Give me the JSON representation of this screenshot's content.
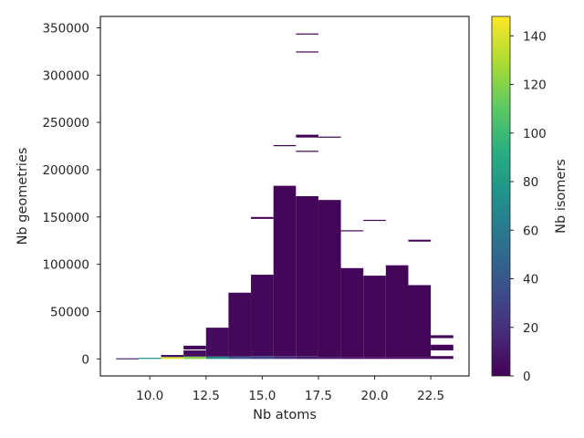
{
  "chart_data": {
    "type": "heatmap",
    "title": "",
    "xlabel": "Nb atoms",
    "ylabel": "Nb geometries",
    "colorbar_label": "Nb isomers",
    "colormap": "viridis",
    "xlim": [
      7.8,
      24.2
    ],
    "ylim": [
      -18000,
      362000
    ],
    "xticks": [
      10.0,
      12.5,
      15.0,
      17.5,
      20.0,
      22.5
    ],
    "xtick_labels": [
      "10.0",
      "12.5",
      "15.0",
      "17.5",
      "20.0",
      "22.5"
    ],
    "yticks": [
      0,
      50000,
      100000,
      150000,
      200000,
      250000,
      300000,
      350000
    ],
    "ytick_labels": [
      "0",
      "50000",
      "100000",
      "150000",
      "200000",
      "250000",
      "300000",
      "350000"
    ],
    "colorbar_range": [
      0,
      148
    ],
    "colorbar_ticks": [
      0,
      20,
      40,
      60,
      80,
      100,
      120,
      140
    ],
    "colorbar_tick_labels": [
      "0",
      "20",
      "40",
      "60",
      "80",
      "100",
      "120",
      "140"
    ],
    "grid": false,
    "columns": [
      {
        "x": 9,
        "cells": [
          {
            "y0": 0,
            "y1": 700,
            "v": 15
          }
        ]
      },
      {
        "x": 10,
        "cells": [
          {
            "y0": 0,
            "y1": 1200,
            "v": 75
          }
        ]
      },
      {
        "x": 11,
        "cells": [
          {
            "y0": 0,
            "y1": 2000,
            "v": 140
          },
          {
            "y0": 2000,
            "y1": 4200,
            "v": 8
          }
        ]
      },
      {
        "x": 12,
        "cells": [
          {
            "y0": 0,
            "y1": 2500,
            "v": 120
          },
          {
            "y0": 2500,
            "y1": 9000,
            "v": 5
          },
          {
            "y0": 10000,
            "y1": 14000,
            "v": 3
          }
        ]
      },
      {
        "x": 13,
        "cells": [
          {
            "y0": 0,
            "y1": 2500,
            "v": 70
          },
          {
            "y0": 2500,
            "y1": 33000,
            "v": 4
          }
        ]
      },
      {
        "x": 14,
        "cells": [
          {
            "y0": 0,
            "y1": 2500,
            "v": 40
          },
          {
            "y0": 2500,
            "y1": 70000,
            "v": 3
          }
        ]
      },
      {
        "x": 15,
        "cells": [
          {
            "y0": 0,
            "y1": 3000,
            "v": 30
          },
          {
            "y0": 3000,
            "y1": 89000,
            "v": 3
          },
          {
            "y0": 148000,
            "y1": 150000,
            "v": 1
          }
        ]
      },
      {
        "x": 16,
        "cells": [
          {
            "y0": 0,
            "y1": 3000,
            "v": 20
          },
          {
            "y0": 3000,
            "y1": 183000,
            "v": 2
          },
          {
            "y0": 225000,
            "y1": 226000,
            "v": 1
          }
        ]
      },
      {
        "x": 17,
        "cells": [
          {
            "y0": 0,
            "y1": 3000,
            "v": 12
          },
          {
            "y0": 3000,
            "y1": 172000,
            "v": 2
          },
          {
            "y0": 219000,
            "y1": 220000,
            "v": 1
          },
          {
            "y0": 234000,
            "y1": 237000,
            "v": 1
          },
          {
            "y0": 324000,
            "y1": 325000,
            "v": 1
          },
          {
            "y0": 343000,
            "y1": 344000,
            "v": 1
          }
        ]
      },
      {
        "x": 18,
        "cells": [
          {
            "y0": 0,
            "y1": 2000,
            "v": 8
          },
          {
            "y0": 2000,
            "y1": 168000,
            "v": 2
          },
          {
            "y0": 234000,
            "y1": 235000,
            "v": 1
          }
        ]
      },
      {
        "x": 19,
        "cells": [
          {
            "y0": 0,
            "y1": 2000,
            "v": 5
          },
          {
            "y0": 2000,
            "y1": 96000,
            "v": 2
          },
          {
            "y0": 135000,
            "y1": 136000,
            "v": 1
          }
        ]
      },
      {
        "x": 20,
        "cells": [
          {
            "y0": 0,
            "y1": 2000,
            "v": 4
          },
          {
            "y0": 2000,
            "y1": 88000,
            "v": 2
          },
          {
            "y0": 146000,
            "y1": 147000,
            "v": 1
          }
        ]
      },
      {
        "x": 21,
        "cells": [
          {
            "y0": 0,
            "y1": 2000,
            "v": 3
          },
          {
            "y0": 2000,
            "y1": 99000,
            "v": 2
          }
        ]
      },
      {
        "x": 22,
        "cells": [
          {
            "y0": 0,
            "y1": 2000,
            "v": 2
          },
          {
            "y0": 2000,
            "y1": 78000,
            "v": 2
          },
          {
            "y0": 124000,
            "y1": 126000,
            "v": 1
          }
        ]
      },
      {
        "x": 23,
        "cells": [
          {
            "y0": 0,
            "y1": 3000,
            "v": 1
          },
          {
            "y0": 9000,
            "y1": 15000,
            "v": 2
          },
          {
            "y0": 22000,
            "y1": 25000,
            "v": 1
          }
        ]
      }
    ]
  }
}
